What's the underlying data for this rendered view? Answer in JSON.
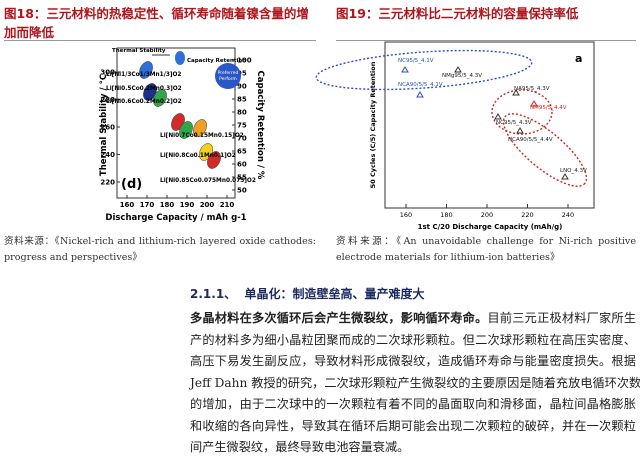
{
  "figures": [
    {
      "caption": "图18：三元材料的热稳定性、循环寿命随着镍含量的增加而降低",
      "source": "资料来源：《Nickel-rich and lithium-rich layered oxide cathodes: progress and perspectives》",
      "chart": {
        "x_label": "Discharge Capacity / mAh g-1",
        "y_label": "Thermal Stability / °C",
        "y2_label": "Capacity Retention / %",
        "x_ticks": [
          160,
          170,
          180,
          190,
          200,
          210
        ],
        "y_ticks": [
          220,
          240,
          260,
          280,
          300
        ],
        "y2_ticks": [
          50,
          55,
          60,
          65,
          70,
          75,
          80,
          85,
          90,
          95,
          100
        ],
        "legend": [
          "Thermal Stability",
          "Capacity Retention"
        ],
        "badge": [
          "Preferred",
          "Perform"
        ],
        "panel": "(d)",
        "materials": [
          "Li[Ni1/3Co1/3Mn1/3]O2",
          "Li[Ni0.5Co0.2Mn0.3]O2",
          "Li[Ni0.6Co0.2Mn0.2]O2",
          "Li[Ni0.7Co0.15Mn0.15]O2",
          "Li[Ni0.8Co0.1Mn0.1]O2",
          "Li[Ni0.85Co0.075Mn0.075]O2"
        ]
      }
    },
    {
      "caption": "图19：三元材料比二元材料的容量保持率低",
      "source": "资料来源：《An unavoidable challenge for Ni-rich positive electrode materials for lithium-ion batteries》",
      "chart": {
        "x_label": "1st C/20 Discharge Capacity (mAh/g)",
        "y_label": "50 Cycles (C/5) Capacity Retention",
        "x_ticks": [
          160,
          180,
          200,
          220,
          240
        ],
        "panel": "a",
        "points": [
          "NC95/5_4.1V",
          "NCA90/5/5_4.1V",
          "NMg95/5_4.3V",
          "NA95/5_4.3V",
          "NM95/5_4.4V",
          "NC95/5_4.3V",
          "NCA90/5/5_4.4V",
          "LNO_4.3V"
        ]
      }
    }
  ],
  "section": {
    "number": "2.1.1、",
    "title": "单晶化：制造壁垒高、量产难度大"
  },
  "paragraph": {
    "lead": "多晶材料在多次循环后会产生微裂纹，影响循环寿命。",
    "lines": [
      "目前三元正极材料厂家所生",
      "产的材料多为细小晶粒团聚而成的二次球形颗粒。但二次球形颗粒在高压实密度、",
      "高压下易发生副反应，导致材料形成微裂纹，造成循环寿命与能量密度损失。根据",
      "Jeff Dahn 教授的研究，二次球形颗粒产生微裂纹的主要原因是随着充放电循环次数",
      "的增加，由于二次球中的一次颗粒有着不同的晶面取向和滑移面，晶粒间晶格膨胀",
      "和收缩的各向异性，导致其在循环后期可能会出现二次颗粒的破碎，并在一次颗粒",
      "间产生微裂纹，最终导致电池容量衰减。"
    ]
  }
}
